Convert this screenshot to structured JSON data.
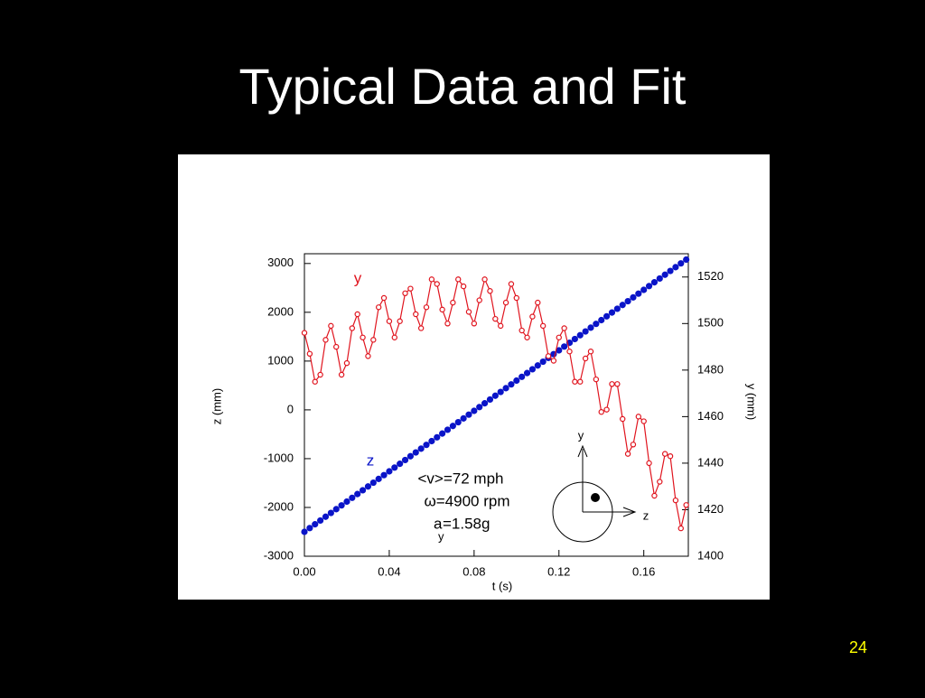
{
  "title": "Typical Data and Fit",
  "page_number": "24",
  "chart_data": {
    "type": "scatter-line",
    "x_label": "t (s)",
    "y_label": "z (mm)",
    "y2_label": "y (mm)",
    "x": [
      0,
      0.0025,
      0.005,
      0.0075,
      0.01,
      0.0125,
      0.015,
      0.0175,
      0.02,
      0.0225,
      0.025,
      0.0275,
      0.03,
      0.0325,
      0.035,
      0.0375,
      0.04,
      0.0425,
      0.045,
      0.0475,
      0.05,
      0.0525,
      0.055,
      0.0575,
      0.06,
      0.0625,
      0.065,
      0.0675,
      0.07,
      0.0725,
      0.075,
      0.0775,
      0.08,
      0.0825,
      0.085,
      0.0875,
      0.09,
      0.0925,
      0.095,
      0.0975,
      0.1,
      0.1025,
      0.105,
      0.1075,
      0.11,
      0.1125,
      0.115,
      0.1175,
      0.12,
      0.1225,
      0.125,
      0.1275,
      0.13,
      0.1325,
      0.135,
      0.1375,
      0.14,
      0.1425,
      0.145,
      0.1475,
      0.15,
      0.1525,
      0.155,
      0.1575,
      0.16,
      0.1625,
      0.165,
      0.1675,
      0.17,
      0.1725,
      0.175,
      0.1775,
      0.18
    ],
    "series": [
      {
        "name": "z",
        "color": "#0a14c8",
        "marker": "filled",
        "line": false,
        "values": [
          -2500,
          -2422.5,
          -2345,
          -2267.5,
          -2190,
          -2112.5,
          -2035,
          -1957.5,
          -1880,
          -1802.5,
          -1725,
          -1647.5,
          -1570,
          -1492.5,
          -1415,
          -1337.5,
          -1260,
          -1182.5,
          -1105,
          -1027.5,
          -950,
          -872.5,
          -795,
          -717.5,
          -640,
          -562.5,
          -485,
          -407.5,
          -330,
          -252.5,
          -175,
          -97.5,
          -20,
          57.5,
          135,
          212.5,
          290,
          367.5,
          445,
          522.5,
          600,
          677.5,
          755,
          832.5,
          910,
          987.5,
          1065,
          1142.5,
          1220,
          1297.5,
          1375,
          1452.5,
          1530,
          1607.5,
          1685,
          1762.5,
          1840,
          1917.5,
          1995,
          2072.5,
          2150,
          2227.5,
          2305,
          2382.5,
          2460,
          2537.5,
          2615,
          2692.5,
          2770,
          2847.5,
          2925,
          3002.5,
          3080
        ]
      },
      {
        "name": "y",
        "color": "#e0141e",
        "marker": "open",
        "line": true,
        "axis": "y2",
        "values": [
          1496,
          1487,
          1475,
          1478,
          1493,
          1499,
          1490,
          1478,
          1483,
          1498,
          1504,
          1494,
          1486,
          1493,
          1507,
          1511,
          1501,
          1494,
          1501,
          1513,
          1515,
          1504,
          1498,
          1507,
          1519,
          1517,
          1506,
          1500,
          1509,
          1519,
          1516,
          1505,
          1500,
          1510,
          1519,
          1514,
          1502,
          1499,
          1509,
          1517,
          1511,
          1497,
          1494,
          1503,
          1509,
          1499,
          1486,
          1484,
          1494,
          1498,
          1488,
          1475,
          1475,
          1485,
          1488,
          1476,
          1462,
          1463,
          1474,
          1474,
          1459,
          1444,
          1448,
          1460,
          1458,
          1440,
          1426,
          1432,
          1444,
          1443,
          1424,
          1412,
          1422
        ]
      }
    ],
    "xlim": [
      0,
      0.181
    ],
    "ylim": [
      -3000,
      3200
    ],
    "y2lim": [
      1400,
      1530
    ],
    "xticks": [
      {
        "value": 0,
        "label": "0.00"
      },
      0.04,
      0.08,
      0.12,
      0.16
    ],
    "yticks": [
      -3000,
      -2000,
      -1000,
      0,
      1000,
      2000,
      3000
    ],
    "y2ticks": [
      1400,
      1420,
      1440,
      1460,
      1480,
      1500,
      1520
    ],
    "annotations": [
      "<v>=72 mph",
      "ω=4900 rpm"
    ],
    "acceleration": {
      "symbol": "a",
      "subscript": "y",
      "text": "=1.58g"
    },
    "inset_labels": {
      "vertical": "y",
      "horizontal": "z"
    }
  }
}
